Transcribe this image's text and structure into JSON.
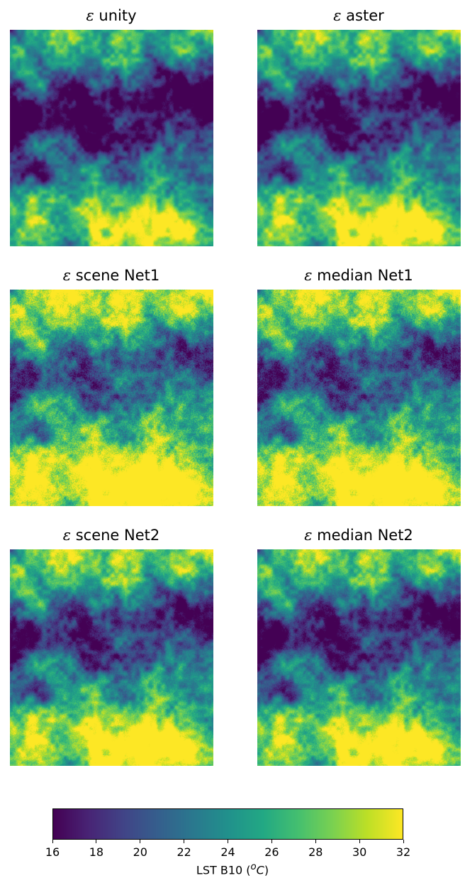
{
  "chart_data": [
    {
      "type": "heatmap",
      "title_symbol": "ε",
      "title": "unity",
      "vmin": 16,
      "vmax": 32,
      "brightness": 0.0
    },
    {
      "type": "heatmap",
      "title_symbol": "ε",
      "title": "aster",
      "vmin": 16,
      "vmax": 32,
      "brightness": 0.06
    },
    {
      "type": "heatmap",
      "title_symbol": "ε",
      "title": "scene Net1",
      "vmin": 16,
      "vmax": 32,
      "brightness": 0.22
    },
    {
      "type": "heatmap",
      "title_symbol": "ε",
      "title": "median Net1",
      "vmin": 16,
      "vmax": 32,
      "brightness": 0.18
    },
    {
      "type": "heatmap",
      "title_symbol": "ε",
      "title": "scene Net2",
      "vmin": 16,
      "vmax": 32,
      "brightness": 0.12
    },
    {
      "type": "heatmap",
      "title_symbol": "ε",
      "title": "median Net2",
      "vmin": 16,
      "vmax": 32,
      "brightness": 0.08
    }
  ],
  "colorbar": {
    "colormap": "viridis",
    "min": 16,
    "max": 32,
    "ticks": [
      "16",
      "18",
      "20",
      "22",
      "24",
      "26",
      "28",
      "30",
      "32"
    ],
    "label_main": "LST B10 (",
    "label_unit_sup": "o",
    "label_unit": "C",
    "label_close": ")"
  }
}
